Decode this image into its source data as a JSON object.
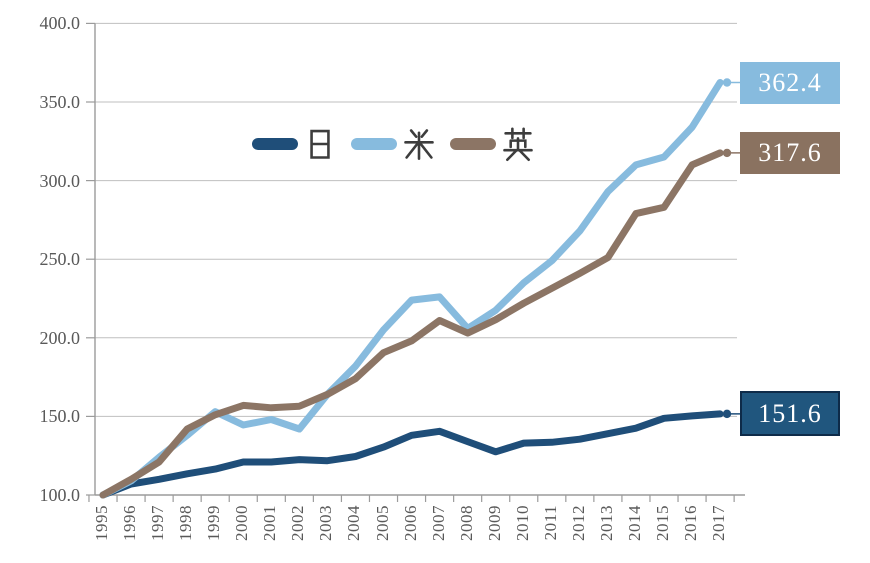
{
  "chart_data": {
    "type": "line",
    "title": "",
    "xlabel": "",
    "ylabel": "",
    "x": [
      "1995",
      "1996",
      "1997",
      "1998",
      "1999",
      "2000",
      "2001",
      "2002",
      "2003",
      "2004",
      "2005",
      "2006",
      "2007",
      "2008",
      "2009",
      "2010",
      "2011",
      "2012",
      "2013",
      "2014",
      "2015",
      "2016",
      "2017"
    ],
    "ylim": [
      100,
      400
    ],
    "y_tick_labels": [
      "100.0",
      "150.0",
      "200.0",
      "250.0",
      "300.0",
      "350.0",
      "400.0"
    ],
    "y_tick_values": [
      100,
      150,
      200,
      250,
      300,
      350,
      400
    ],
    "grid": true,
    "legend_position": "top-center-inside",
    "series": [
      {
        "id": "japan",
        "name": "日",
        "color": "#1F4E79",
        "end_label": "151.6",
        "end_label_bg": "#20567E",
        "end_label_border": "#0E2B49",
        "values": [
          100,
          107,
          110,
          113.5,
          116.5,
          121,
          121,
          122.5,
          121.8,
          124.5,
          130.5,
          138,
          140.5,
          134,
          127.5,
          133,
          133.5,
          135.5,
          139,
          142.5,
          148.8,
          150.3,
          151.6
        ]
      },
      {
        "id": "us",
        "name": "米",
        "color": "#87BBDE",
        "end_label": "362.4",
        "end_label_bg": "#87BBDE",
        "end_label_border": "",
        "values": [
          100,
          109,
          124,
          138,
          153,
          144.5,
          148,
          142,
          164,
          182,
          205,
          224,
          226,
          206,
          217.5,
          235,
          249,
          268,
          293,
          310,
          315,
          334,
          362.4
        ]
      },
      {
        "id": "uk",
        "name": "英",
        "color": "#8C7565",
        "end_label": "317.6",
        "end_label_bg": "#8A7260",
        "end_label_border": "",
        "values": [
          100,
          110,
          121,
          142,
          151,
          157,
          155.5,
          156.5,
          164,
          174,
          190.5,
          198,
          211,
          203,
          211.5,
          222,
          231.5,
          241,
          251,
          279,
          283,
          310,
          317.6
        ]
      }
    ]
  },
  "colors": {
    "gridline": "#BFBFBF",
    "axis": "#9B9B9B",
    "axis_text": "#595959",
    "legend_text": "#3D3D3D",
    "background": "#FFFFFF"
  }
}
